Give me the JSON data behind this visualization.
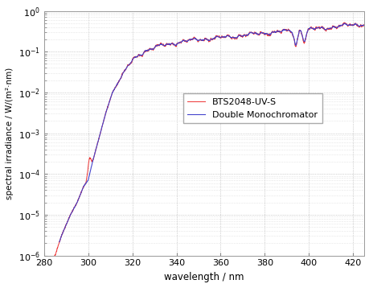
{
  "xlabel": "wavelength / nm",
  "ylabel": "spectral irradiance / W/(m²·nm)",
  "xlim": [
    280,
    425
  ],
  "ylim": [
    1e-06,
    1.0
  ],
  "xticks": [
    280,
    300,
    320,
    340,
    360,
    380,
    400,
    420
  ],
  "legend": [
    "Double Monochromator",
    "BTS2048-UV-S"
  ],
  "color_dm": "#4444cc",
  "color_bts": "#ee3333",
  "background_color": "#ffffff",
  "figsize": [
    4.6,
    3.58
  ],
  "dpi": 100
}
